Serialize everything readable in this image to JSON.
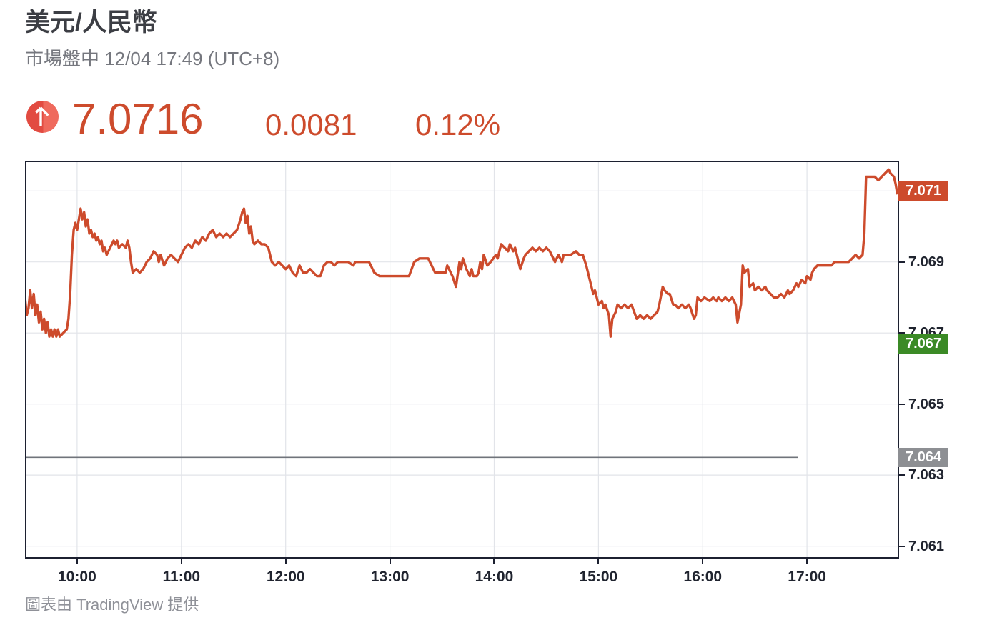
{
  "header": {
    "title": "美元/人民幣",
    "subtitle": "市場盤中 12/04 17:49 (UTC+8)",
    "price": "7.0716",
    "change": "0.0081",
    "change_pct": "0.12%",
    "direction": "up",
    "accent_color": "#cd4b2c"
  },
  "footer": {
    "attribution": "圖表由 TradingView 提供"
  },
  "colors": {
    "line": "#cd4b2c",
    "grid": "#e2e4e9",
    "axis_border": "#1c2030",
    "tick_text": "#20242f",
    "prev_close_line": "#70747b",
    "last_badge_bg": "#cd4b2c",
    "low_badge_bg": "#3b8a26",
    "prev_close_badge_bg": "#8d8f93"
  },
  "chart_data": {
    "type": "line",
    "title": "USD/CNY intraday line",
    "x_unit": "minutes since 09:30 (UTC+8)",
    "x_domain": [
      0,
      503
    ],
    "y_domain": [
      7.06065,
      7.07185
    ],
    "grid": true,
    "x_ticks": [
      {
        "label": "10:00",
        "t": 30
      },
      {
        "label": "11:00",
        "t": 90
      },
      {
        "label": "12:00",
        "t": 150
      },
      {
        "label": "13:00",
        "t": 210
      },
      {
        "label": "14:00",
        "t": 270
      },
      {
        "label": "15:00",
        "t": 330
      },
      {
        "label": "16:00",
        "t": 390
      },
      {
        "label": "17:00",
        "t": 450
      }
    ],
    "y_ticks": [
      {
        "label": "7.071",
        "value": 7.071
      },
      {
        "label": "7.069",
        "value": 7.069
      },
      {
        "label": "7.067",
        "value": 7.067
      },
      {
        "label": "7.065",
        "value": 7.065
      },
      {
        "label": "7.063",
        "value": 7.063
      },
      {
        "label": "7.061",
        "value": 7.061
      }
    ],
    "last_badge": {
      "label": "7.071",
      "value": 7.071
    },
    "low_badge": {
      "label": "7.067",
      "value": 7.0667
    },
    "prev_close": {
      "label": "7.064",
      "value": 7.0635,
      "line_end_t": 445
    },
    "series": [
      [
        0,
        7.068
      ],
      [
        1,
        7.0675
      ],
      [
        2,
        7.0677
      ],
      [
        3,
        7.0682
      ],
      [
        4,
        7.0677
      ],
      [
        5,
        7.0681
      ],
      [
        6,
        7.0675
      ],
      [
        7,
        7.0678
      ],
      [
        8,
        7.0673
      ],
      [
        9,
        7.0676
      ],
      [
        10,
        7.0671
      ],
      [
        11,
        7.0674
      ],
      [
        12,
        7.067
      ],
      [
        13,
        7.0673
      ],
      [
        14,
        7.0669
      ],
      [
        15,
        7.0671
      ],
      [
        16,
        7.0669
      ],
      [
        17,
        7.0671
      ],
      [
        18,
        7.0669
      ],
      [
        19,
        7.0671
      ],
      [
        20,
        7.0669
      ],
      [
        22,
        7.067
      ],
      [
        24,
        7.0671
      ],
      [
        25,
        7.0674
      ],
      [
        26,
        7.0681
      ],
      [
        27,
        7.0692
      ],
      [
        28,
        7.0699
      ],
      [
        29,
        7.0701
      ],
      [
        30,
        7.0699
      ],
      [
        31,
        7.0702
      ],
      [
        32,
        7.0705
      ],
      [
        33,
        7.0702
      ],
      [
        34,
        7.0704
      ],
      [
        35,
        7.07
      ],
      [
        36,
        7.0702
      ],
      [
        37,
        7.0698
      ],
      [
        38,
        7.0699
      ],
      [
        39,
        7.0697
      ],
      [
        40,
        7.0698
      ],
      [
        41,
        7.0696
      ],
      [
        42,
        7.0697
      ],
      [
        43,
        7.0695
      ],
      [
        44,
        7.0696
      ],
      [
        45,
        7.0693
      ],
      [
        46,
        7.0694
      ],
      [
        47,
        7.0692
      ],
      [
        48,
        7.0693
      ],
      [
        49,
        7.0694
      ],
      [
        50,
        7.0695
      ],
      [
        51,
        7.0696
      ],
      [
        52,
        7.0695
      ],
      [
        53,
        7.0696
      ],
      [
        54,
        7.0694
      ],
      [
        56,
        7.0695
      ],
      [
        58,
        7.0694
      ],
      [
        59,
        7.0696
      ],
      [
        60,
        7.0694
      ],
      [
        61,
        7.069
      ],
      [
        62,
        7.0687
      ],
      [
        64,
        7.0688
      ],
      [
        66,
        7.0687
      ],
      [
        68,
        7.0688
      ],
      [
        70,
        7.069
      ],
      [
        72,
        7.0691
      ],
      [
        74,
        7.0693
      ],
      [
        76,
        7.0692
      ],
      [
        77,
        7.069
      ],
      [
        78,
        7.0692
      ],
      [
        80,
        7.0689
      ],
      [
        82,
        7.0691
      ],
      [
        84,
        7.0692
      ],
      [
        86,
        7.0691
      ],
      [
        88,
        7.069
      ],
      [
        90,
        7.0692
      ],
      [
        92,
        7.0694
      ],
      [
        94,
        7.0695
      ],
      [
        96,
        7.0694
      ],
      [
        98,
        7.0696
      ],
      [
        100,
        7.0695
      ],
      [
        102,
        7.0697
      ],
      [
        104,
        7.0696
      ],
      [
        106,
        7.0698
      ],
      [
        108,
        7.0699
      ],
      [
        110,
        7.0697
      ],
      [
        112,
        7.0698
      ],
      [
        114,
        7.0697
      ],
      [
        116,
        7.0698
      ],
      [
        118,
        7.0697
      ],
      [
        120,
        7.0698
      ],
      [
        122,
        7.0699
      ],
      [
        124,
        7.0702
      ],
      [
        125,
        7.0704
      ],
      [
        126,
        7.0705
      ],
      [
        127,
        7.0701
      ],
      [
        128,
        7.0703
      ],
      [
        129,
        7.0698
      ],
      [
        130,
        7.07
      ],
      [
        131,
        7.0696
      ],
      [
        132,
        7.0695
      ],
      [
        134,
        7.0696
      ],
      [
        136,
        7.0695
      ],
      [
        138,
        7.0695
      ],
      [
        140,
        7.0694
      ],
      [
        142,
        7.069
      ],
      [
        144,
        7.0689
      ],
      [
        146,
        7.069
      ],
      [
        148,
        7.0689
      ],
      [
        150,
        7.0688
      ],
      [
        152,
        7.0689
      ],
      [
        154,
        7.0687
      ],
      [
        156,
        7.0686
      ],
      [
        158,
        7.0689
      ],
      [
        160,
        7.0687
      ],
      [
        162,
        7.0687
      ],
      [
        164,
        7.0688
      ],
      [
        166,
        7.0687
      ],
      [
        168,
        7.0686
      ],
      [
        170,
        7.0686
      ],
      [
        172,
        7.0689
      ],
      [
        174,
        7.069
      ],
      [
        176,
        7.069
      ],
      [
        178,
        7.0689
      ],
      [
        180,
        7.069
      ],
      [
        183,
        7.069
      ],
      [
        186,
        7.069
      ],
      [
        189,
        7.0689
      ],
      [
        190,
        7.069
      ],
      [
        193,
        7.069
      ],
      [
        196,
        7.069
      ],
      [
        198,
        7.069
      ],
      [
        199,
        7.0689
      ],
      [
        201,
        7.0687
      ],
      [
        204,
        7.0686
      ],
      [
        207,
        7.0686
      ],
      [
        210,
        7.0686
      ],
      [
        213,
        7.0686
      ],
      [
        216,
        7.0686
      ],
      [
        219,
        7.0686
      ],
      [
        221,
        7.0686
      ],
      [
        224,
        7.069
      ],
      [
        227,
        7.0691
      ],
      [
        230,
        7.0691
      ],
      [
        232,
        7.0691
      ],
      [
        234,
        7.0689
      ],
      [
        236,
        7.0687
      ],
      [
        238,
        7.0687
      ],
      [
        240,
        7.0687
      ],
      [
        242,
        7.0687
      ],
      [
        243,
        7.0689
      ],
      [
        245,
        7.0687
      ],
      [
        246,
        7.0686
      ],
      [
        248,
        7.0683
      ],
      [
        250,
        7.069
      ],
      [
        251,
        7.0688
      ],
      [
        252,
        7.0691
      ],
      [
        254,
        7.0688
      ],
      [
        256,
        7.0686
      ],
      [
        257,
        7.0688
      ],
      [
        258,
        7.0686
      ],
      [
        260,
        7.0686
      ],
      [
        261,
        7.0687
      ],
      [
        262,
        7.069
      ],
      [
        263,
        7.0688
      ],
      [
        264,
        7.0692
      ],
      [
        266,
        7.0689
      ],
      [
        268,
        7.069
      ],
      [
        271,
        7.0692
      ],
      [
        272,
        7.0691
      ],
      [
        274,
        7.0695
      ],
      [
        276,
        7.0694
      ],
      [
        278,
        7.0693
      ],
      [
        279,
        7.0695
      ],
      [
        281,
        7.0693
      ],
      [
        282,
        7.0694
      ],
      [
        283,
        7.0692
      ],
      [
        285,
        7.0688
      ],
      [
        287,
        7.0691
      ],
      [
        288,
        7.0692
      ],
      [
        290,
        7.0693
      ],
      [
        292,
        7.0694
      ],
      [
        294,
        7.0693
      ],
      [
        296,
        7.0694
      ],
      [
        298,
        7.0693
      ],
      [
        300,
        7.0694
      ],
      [
        302,
        7.0693
      ],
      [
        305,
        7.069
      ],
      [
        307,
        7.0692
      ],
      [
        309,
        7.069
      ],
      [
        310,
        7.0692
      ],
      [
        312,
        7.0692
      ],
      [
        314,
        7.0692
      ],
      [
        317,
        7.0693
      ],
      [
        319,
        7.0692
      ],
      [
        321,
        7.0692
      ],
      [
        323,
        7.0689
      ],
      [
        325,
        7.0685
      ],
      [
        327,
        7.0681
      ],
      [
        328,
        7.0682
      ],
      [
        330,
        7.0678
      ],
      [
        332,
        7.0679
      ],
      [
        333,
        7.0677
      ],
      [
        334,
        7.0678
      ],
      [
        336,
        7.0675
      ],
      [
        337,
        7.0669
      ],
      [
        338,
        7.0674
      ],
      [
        340,
        7.0676
      ],
      [
        341,
        7.0678
      ],
      [
        343,
        7.0677
      ],
      [
        345,
        7.0678
      ],
      [
        347,
        7.0677
      ],
      [
        349,
        7.0678
      ],
      [
        352,
        7.0674
      ],
      [
        354,
        7.0675
      ],
      [
        356,
        7.0674
      ],
      [
        358,
        7.0675
      ],
      [
        360,
        7.0674
      ],
      [
        362,
        7.0675
      ],
      [
        364,
        7.0676
      ],
      [
        365,
        7.0678
      ],
      [
        367,
        7.0683
      ],
      [
        368,
        7.0682
      ],
      [
        370,
        7.0681
      ],
      [
        371,
        7.0681
      ],
      [
        373,
        7.0678
      ],
      [
        374,
        7.0678
      ],
      [
        376,
        7.0677
      ],
      [
        378,
        7.0678
      ],
      [
        380,
        7.0677
      ],
      [
        382,
        7.0678
      ],
      [
        383,
        7.0677
      ],
      [
        385,
        7.0674
      ],
      [
        386,
        7.0675
      ],
      [
        387,
        7.068
      ],
      [
        389,
        7.0679
      ],
      [
        391,
        7.068
      ],
      [
        394,
        7.0679
      ],
      [
        396,
        7.068
      ],
      [
        398,
        7.0679
      ],
      [
        399,
        7.068
      ],
      [
        401,
        7.0679
      ],
      [
        403,
        7.068
      ],
      [
        405,
        7.0679
      ],
      [
        407,
        7.068
      ],
      [
        409,
        7.0678
      ],
      [
        410,
        7.0673
      ],
      [
        412,
        7.0678
      ],
      [
        413,
        7.0689
      ],
      [
        414,
        7.0687
      ],
      [
        416,
        7.0688
      ],
      [
        417,
        7.0683
      ],
      [
        419,
        7.0684
      ],
      [
        420,
        7.0682
      ],
      [
        422,
        7.0683
      ],
      [
        424,
        7.0682
      ],
      [
        426,
        7.0683
      ],
      [
        427,
        7.0682
      ],
      [
        429,
        7.0681
      ],
      [
        431,
        7.068
      ],
      [
        433,
        7.068
      ],
      [
        435,
        7.0681
      ],
      [
        437,
        7.068
      ],
      [
        439,
        7.0682
      ],
      [
        440,
        7.0681
      ],
      [
        442,
        7.0682
      ],
      [
        444,
        7.0684
      ],
      [
        445,
        7.0683
      ],
      [
        447,
        7.0685
      ],
      [
        449,
        7.0684
      ],
      [
        450,
        7.0686
      ],
      [
        452,
        7.0685
      ],
      [
        453,
        7.0687
      ],
      [
        454,
        7.0688
      ],
      [
        456,
        7.0689
      ],
      [
        458,
        7.0689
      ],
      [
        460,
        7.0689
      ],
      [
        462,
        7.0689
      ],
      [
        464,
        7.0689
      ],
      [
        466,
        7.069
      ],
      [
        468,
        7.069
      ],
      [
        470,
        7.069
      ],
      [
        472,
        7.069
      ],
      [
        474,
        7.069
      ],
      [
        476,
        7.0691
      ],
      [
        478,
        7.0692
      ],
      [
        480,
        7.0691
      ],
      [
        482,
        7.0692
      ],
      [
        483,
        7.0698
      ],
      [
        484,
        7.0714
      ],
      [
        486,
        7.0714
      ],
      [
        489,
        7.0714
      ],
      [
        491,
        7.0713
      ],
      [
        493,
        7.0714
      ],
      [
        495,
        7.0715
      ],
      [
        497,
        7.0716
      ],
      [
        498,
        7.0715
      ],
      [
        500,
        7.0714
      ],
      [
        501,
        7.0712
      ],
      [
        502,
        7.0709
      ]
    ]
  }
}
